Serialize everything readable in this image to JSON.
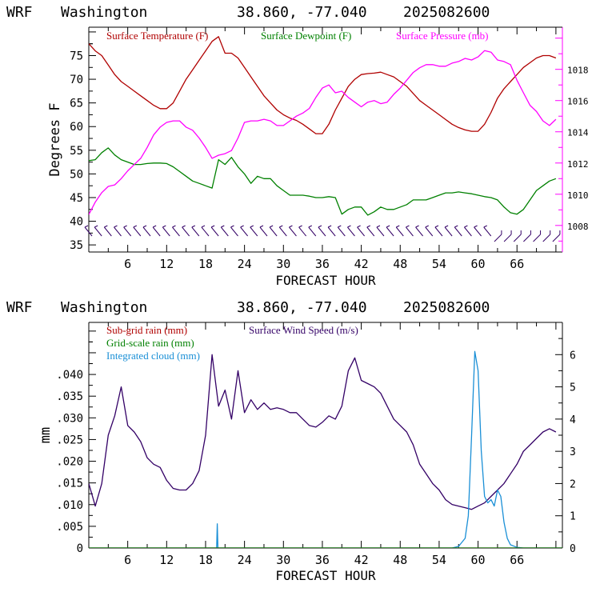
{
  "chart_data": [
    {
      "type": "line",
      "header": {
        "model": "WRF",
        "location": "Washington",
        "coords": "38.860, -77.040",
        "run": "2025082600"
      },
      "xlabel": "FORECAST HOUR",
      "ylabel": "Degrees F",
      "xlim": [
        0,
        73
      ],
      "x_ticks": [
        "6",
        "12",
        "18",
        "24",
        "30",
        "36",
        "42",
        "48",
        "54",
        "60",
        "66"
      ],
      "ylim": [
        33.5,
        81
      ],
      "y_ticks": [
        "35",
        "40",
        "45",
        "50",
        "55",
        "60",
        "65",
        "70",
        "75"
      ],
      "y2lim": [
        1006.3,
        1020.7
      ],
      "y2_ticks": [
        "1008",
        "1010",
        "1012",
        "1014",
        "1016",
        "1018"
      ],
      "legend": [
        {
          "label": "Surface Temperature (F)",
          "color": "#b00000"
        },
        {
          "label": "Surface Dewpoint (F)",
          "color": "#008000"
        },
        {
          "label": "Surface Pressure (mb)",
          "color": "#ff00ff"
        }
      ],
      "colors": {
        "temperature": "#b00000",
        "dewpoint": "#008000",
        "pressure": "#ff00ff",
        "wind_barbs": "#330066"
      },
      "series": [
        {
          "name": "Surface Temperature (F)",
          "axis": "left",
          "color": "#b00000",
          "x": [
            0,
            1,
            2,
            3,
            4,
            5,
            6,
            7,
            8,
            9,
            10,
            11,
            12,
            13,
            14,
            15,
            16,
            17,
            18,
            19,
            20,
            21,
            22,
            23,
            24,
            25,
            26,
            27,
            28,
            29,
            30,
            31,
            32,
            33,
            34,
            35,
            36,
            37,
            38,
            39,
            40,
            41,
            42,
            43,
            44,
            45,
            46,
            47,
            48,
            49,
            50,
            51,
            52,
            53,
            54,
            55,
            56,
            57,
            58,
            59,
            60,
            61,
            62,
            63,
            64,
            65,
            66,
            67,
            68,
            69,
            70,
            71,
            72
          ],
          "values": [
            77.5,
            76,
            75,
            73,
            71,
            69.5,
            68.5,
            67.5,
            66.5,
            65.5,
            64.5,
            63.8,
            63.8,
            65,
            67.5,
            70,
            72,
            74,
            76,
            78,
            79,
            75.5,
            75.5,
            74.5,
            72.5,
            70.5,
            68.5,
            66.5,
            65,
            63.5,
            62.5,
            61.8,
            61.3,
            60.5,
            59.5,
            58.5,
            58.5,
            60.5,
            63.5,
            66,
            68.5,
            70,
            71,
            71.2,
            71.3,
            71.5,
            71,
            70.5,
            69.5,
            68.5,
            67,
            65.5,
            64.5,
            63.5,
            62.5,
            61.5,
            60.5,
            59.8,
            59.3,
            59,
            59,
            60.5,
            63,
            66,
            68,
            69.5,
            71,
            72.5,
            73.5,
            74.5,
            75,
            75,
            74.5
          ]
        },
        {
          "name": "Surface Dewpoint (F)",
          "axis": "left",
          "color": "#008000",
          "x": [
            0,
            1,
            2,
            3,
            4,
            5,
            6,
            7,
            8,
            9,
            10,
            11,
            12,
            13,
            14,
            15,
            16,
            17,
            18,
            19,
            20,
            21,
            22,
            23,
            24,
            25,
            26,
            27,
            28,
            29,
            30,
            31,
            32,
            33,
            34,
            35,
            36,
            37,
            38,
            39,
            40,
            41,
            42,
            43,
            44,
            45,
            46,
            47,
            48,
            49,
            50,
            51,
            52,
            53,
            54,
            55,
            56,
            57,
            58,
            59,
            60,
            61,
            62,
            63,
            64,
            65,
            66,
            67,
            68,
            69,
            70,
            71,
            72
          ],
          "values": [
            52.8,
            53,
            54.5,
            55.5,
            54,
            53,
            52.5,
            52,
            52,
            52.2,
            52.3,
            52.3,
            52.2,
            51.5,
            50.5,
            49.5,
            48.5,
            48,
            47.5,
            47,
            53,
            52,
            53.5,
            51.5,
            50,
            48,
            49.5,
            49,
            49,
            47.5,
            46.5,
            45.5,
            45.5,
            45.5,
            45.3,
            45,
            45,
            45.2,
            45,
            41.5,
            42.5,
            43,
            43,
            41.3,
            42,
            43,
            42.5,
            42.5,
            43,
            43.5,
            44.5,
            44.5,
            44.5,
            45,
            45.5,
            46,
            46,
            46.2,
            46,
            45.8,
            45.5,
            45.2,
            45,
            44.5,
            43,
            41.8,
            41.5,
            42.5,
            44.5,
            46.5,
            47.5,
            48.5,
            49
          ]
        },
        {
          "name": "Surface Pressure (mb)",
          "axis": "right",
          "color": "#ff00ff",
          "x": [
            0,
            1,
            2,
            3,
            4,
            5,
            6,
            7,
            8,
            9,
            10,
            11,
            12,
            13,
            14,
            15,
            16,
            17,
            18,
            19,
            20,
            21,
            22,
            23,
            24,
            25,
            26,
            27,
            28,
            29,
            30,
            31,
            32,
            33,
            34,
            35,
            36,
            37,
            38,
            39,
            40,
            41,
            42,
            43,
            44,
            45,
            46,
            47,
            48,
            49,
            50,
            51,
            52,
            53,
            54,
            55,
            56,
            57,
            58,
            59,
            60,
            61,
            62,
            63,
            64,
            65,
            66,
            67,
            68,
            69,
            70,
            71,
            72
          ],
          "values": [
            1008.7,
            1009.5,
            1010.1,
            1010.5,
            1010.6,
            1011.0,
            1011.5,
            1011.9,
            1012.3,
            1013.0,
            1013.8,
            1014.3,
            1014.6,
            1014.7,
            1014.7,
            1014.3,
            1014.1,
            1013.6,
            1013.0,
            1012.3,
            1012.5,
            1012.6,
            1012.8,
            1013.6,
            1014.6,
            1014.7,
            1014.7,
            1014.8,
            1014.7,
            1014.4,
            1014.4,
            1014.7,
            1015.0,
            1015.2,
            1015.5,
            1016.2,
            1016.8,
            1017.0,
            1016.5,
            1016.6,
            1016.2,
            1015.9,
            1015.6,
            1015.9,
            1016.0,
            1015.8,
            1015.9,
            1016.4,
            1016.8,
            1017.3,
            1017.8,
            1018.1,
            1018.3,
            1018.3,
            1018.2,
            1018.2,
            1018.4,
            1018.5,
            1018.7,
            1018.6,
            1018.8,
            1019.2,
            1019.1,
            1018.6,
            1018.5,
            1018.3,
            1017.3,
            1016.5,
            1015.7,
            1015.3,
            1014.7,
            1014.4,
            1014.8
          ]
        }
      ],
      "wind_barb_hours": [
        0,
        1.5,
        3,
        4.5,
        6,
        7.5,
        9,
        10.5,
        12,
        13.5,
        15,
        16.5,
        18,
        19.5,
        21,
        22.5,
        24,
        25.5,
        27,
        28.5,
        30,
        31.5,
        33,
        34.5,
        36,
        37.5,
        39,
        40.5,
        42,
        43.5,
        45,
        46.5,
        48,
        49.5,
        51,
        52.5,
        54,
        55.5,
        57,
        58.5,
        60,
        61.5,
        63,
        64.5,
        66,
        67.5,
        69,
        70.5,
        72
      ]
    },
    {
      "type": "line",
      "header": {
        "model": "WRF",
        "location": "Washington",
        "coords": "38.860, -77.040",
        "run": "2025082600"
      },
      "xlabel": "FORECAST HOUR",
      "ylabel": "mm",
      "xlim": [
        0,
        73
      ],
      "x_ticks": [
        "6",
        "12",
        "18",
        "24",
        "30",
        "36",
        "42",
        "48",
        "54",
        "60",
        "66"
      ],
      "ylim": [
        0,
        0.052
      ],
      "y_ticks": [
        "0",
        ".005",
        ".010",
        ".015",
        ".020",
        ".025",
        ".030",
        ".035",
        ".040"
      ],
      "y2lim": [
        0,
        7
      ],
      "y2_ticks": [
        "0",
        "1",
        "2",
        "3",
        "4",
        "5",
        "6"
      ],
      "legend": [
        {
          "label": "Sub-grid rain (mm)",
          "color": "#b00000"
        },
        {
          "label": "Grid-scale rain (mm)",
          "color": "#008000"
        },
        {
          "label": "Integrated cloud (mm)",
          "color": "#1a8fd6"
        },
        {
          "label": "Surface Wind Speed (m/s)",
          "color": "#330066"
        }
      ],
      "colors": {
        "subgrid": "#b00000",
        "gridscale": "#008000",
        "cloud": "#1a8fd6",
        "wind": "#330066"
      },
      "series": [
        {
          "name": "Surface Wind Speed (m/s)",
          "axis": "right",
          "color": "#330066",
          "x": [
            0,
            1,
            2,
            3,
            4,
            5,
            6,
            7,
            8,
            9,
            10,
            11,
            12,
            13,
            14,
            15,
            16,
            17,
            18,
            19,
            20,
            21,
            22,
            23,
            24,
            25,
            26,
            27,
            28,
            29,
            30,
            31,
            32,
            33,
            34,
            35,
            36,
            37,
            38,
            39,
            40,
            41,
            42,
            43,
            44,
            45,
            46,
            47,
            48,
            49,
            50,
            51,
            52,
            53,
            54,
            55,
            56,
            57,
            58,
            59,
            60,
            61,
            62,
            63,
            64,
            65,
            66,
            67,
            68,
            69,
            70,
            71,
            72
          ],
          "values": [
            2.0,
            1.3,
            2.0,
            3.5,
            4.1,
            5.0,
            3.8,
            3.6,
            3.3,
            2.8,
            2.6,
            2.5,
            2.1,
            1.85,
            1.8,
            1.8,
            2.0,
            2.4,
            3.5,
            6.0,
            4.4,
            4.9,
            4.0,
            5.5,
            4.2,
            4.6,
            4.3,
            4.5,
            4.3,
            4.35,
            4.3,
            4.2,
            4.2,
            4.0,
            3.8,
            3.75,
            3.9,
            4.1,
            4.0,
            4.4,
            5.5,
            5.9,
            5.2,
            5.1,
            5.0,
            4.8,
            4.4,
            4.0,
            3.8,
            3.6,
            3.2,
            2.6,
            2.3,
            2.0,
            1.8,
            1.5,
            1.35,
            1.3,
            1.25,
            1.2,
            1.3,
            1.4,
            1.6,
            1.8,
            2.0,
            2.3,
            2.6,
            3.0,
            3.2,
            3.4,
            3.6,
            3.7,
            3.6
          ]
        },
        {
          "name": "Integrated cloud (mm)",
          "axis": "right",
          "color": "#1a8fd6",
          "x": [
            0,
            19.7,
            19.8,
            19.9,
            56,
            57,
            58,
            58.5,
            59,
            59.5,
            60,
            60.5,
            61,
            61.5,
            62,
            62.5,
            63,
            63.5,
            64,
            64.5,
            65,
            66,
            67,
            73
          ],
          "values": [
            0,
            0,
            0.75,
            0,
            0,
            0.05,
            0.3,
            1.0,
            3.5,
            6.1,
            5.5,
            3.0,
            1.6,
            1.4,
            1.5,
            1.3,
            1.8,
            1.6,
            0.8,
            0.3,
            0.1,
            0.02,
            0,
            0
          ]
        },
        {
          "name": "Sub-grid rain (mm)",
          "axis": "left",
          "color": "#b00000",
          "x": [
            0,
            73
          ],
          "values": [
            0,
            0
          ]
        },
        {
          "name": "Grid-scale rain (mm)",
          "axis": "left",
          "color": "#008000",
          "x": [
            0,
            73
          ],
          "values": [
            0,
            0
          ]
        }
      ]
    }
  ]
}
